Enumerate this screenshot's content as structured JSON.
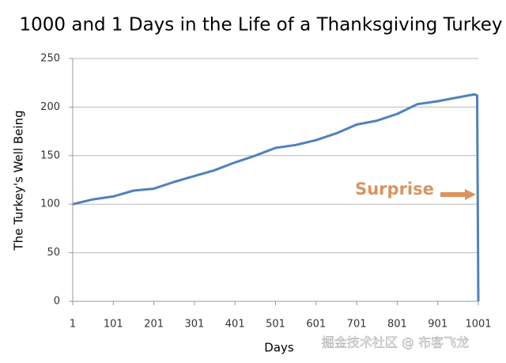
{
  "chart_data": {
    "type": "line",
    "title": "1000 and 1 Days in the Life of a Thanksgiving Turkey",
    "x_label": "Days",
    "y_label": "The Turkey's Well Being",
    "annotation": "Surprise",
    "annotation_color": "#d9935f",
    "color": "#4f81bd",
    "x": [
      1,
      51,
      101,
      151,
      201,
      251,
      301,
      351,
      401,
      451,
      501,
      551,
      601,
      651,
      701,
      751,
      801,
      851,
      901,
      951,
      991,
      998,
      1001
    ],
    "values": [
      100,
      105,
      108,
      114,
      116,
      123,
      129,
      135,
      143,
      150,
      158,
      161,
      166,
      173,
      182,
      186,
      193,
      203,
      206,
      210,
      213,
      212,
      0
    ],
    "xlim": [
      1,
      1001
    ],
    "xticks": [
      1,
      101,
      201,
      301,
      401,
      501,
      601,
      701,
      801,
      901,
      1001
    ],
    "ylim": [
      0,
      250
    ],
    "yticks": [
      0,
      50,
      100,
      150,
      200,
      250
    ],
    "grid": true
  },
  "watermark": "掘金技术社区 @ 布客飞龙"
}
